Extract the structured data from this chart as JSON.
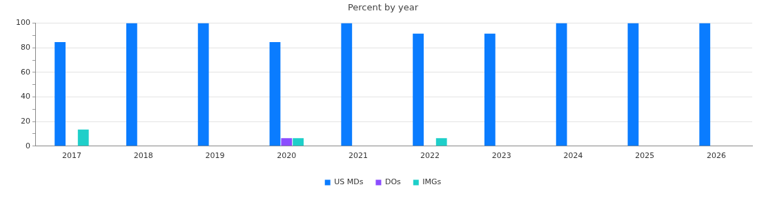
{
  "chart_data": {
    "type": "bar",
    "title": "Percent by year",
    "categories": [
      "2017",
      "2018",
      "2019",
      "2020",
      "2021",
      "2022",
      "2023",
      "2024",
      "2025",
      "2026"
    ],
    "series": [
      {
        "name": "US MDs",
        "color": "#0a7cff",
        "values": [
          84.6,
          100,
          100,
          84.6,
          100,
          91.5,
          91.5,
          100,
          100,
          100
        ]
      },
      {
        "name": "DOs",
        "color": "#8b4dff",
        "values": [
          0,
          0,
          0,
          6.5,
          0,
          0,
          0,
          0,
          0,
          0
        ]
      },
      {
        "name": "IMGs",
        "color": "#1ecfc9",
        "values": [
          13.5,
          0,
          0,
          6.5,
          0,
          6.5,
          0,
          0,
          0,
          0
        ]
      }
    ],
    "ylim": [
      0,
      100
    ],
    "yticks": [
      0,
      {
        "value": 10,
        "label": null
      },
      20,
      {
        "value": 30,
        "label": null
      },
      40,
      {
        "value": 50,
        "label": null
      },
      60,
      {
        "value": 70,
        "label": null
      },
      80,
      {
        "value": 90,
        "label": null
      },
      100
    ],
    "grid": "y",
    "legend": "bottom"
  }
}
